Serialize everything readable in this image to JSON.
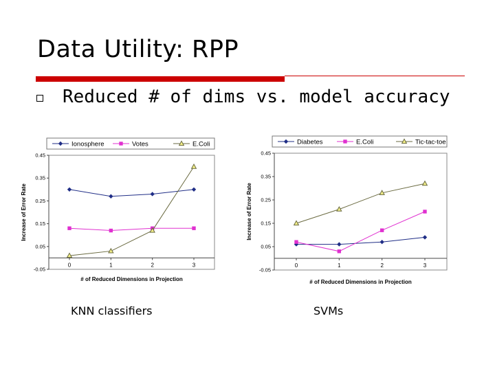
{
  "slide": {
    "title": "Data Utility: RPP",
    "bullet": "Reduced # of dims vs. model accuracy",
    "captions": [
      "KNN classifiers",
      "SVMs"
    ]
  },
  "colors": {
    "accent": "#cc0000",
    "series": [
      "#1f2d86",
      "#e030d0",
      "#6a6a40"
    ],
    "plot_bg": "#ffffff",
    "legend_bg": "#ffffff"
  },
  "chart_data": [
    {
      "type": "line",
      "x": [
        0,
        1,
        2,
        3
      ],
      "xlabel": "# of Reduced Dimensions in Projection",
      "ylabel": "Increase of Error Rate",
      "ylim": [
        -0.05,
        0.45
      ],
      "yticks": [
        -0.05,
        0.05,
        0.15,
        0.25,
        0.35,
        0.45
      ],
      "ytick_labels": [
        "-0.05",
        "0.05",
        "0.15",
        "0.25",
        "0.35",
        "0.45"
      ],
      "xtick_labels": [
        "0",
        "1",
        "2",
        "3"
      ],
      "legend_position": "top",
      "grid": false,
      "series": [
        {
          "name": "Ionosphere",
          "marker": "diamond",
          "values": [
            0.3,
            0.27,
            0.28,
            0.3
          ]
        },
        {
          "name": "Votes",
          "marker": "square",
          "values": [
            0.13,
            0.12,
            0.13,
            0.13
          ]
        },
        {
          "name": "E.Coli",
          "marker": "triangle",
          "values": [
            0.01,
            0.03,
            0.12,
            0.4
          ]
        }
      ]
    },
    {
      "type": "line",
      "x": [
        0,
        1,
        2,
        3
      ],
      "xlabel": "# of Reduced Dimensions in Projection",
      "ylabel": "Increase of Error Rate",
      "ylim": [
        -0.05,
        0.45
      ],
      "yticks": [
        -0.05,
        0.05,
        0.15,
        0.25,
        0.35,
        0.45
      ],
      "ytick_labels": [
        "-0.05",
        "0.05",
        "0.15",
        "0.25",
        "0.35",
        "0.45"
      ],
      "xtick_labels": [
        "0",
        "1",
        "2",
        "3"
      ],
      "legend_position": "top",
      "grid": false,
      "series": [
        {
          "name": "Diabetes",
          "marker": "diamond",
          "values": [
            0.06,
            0.06,
            0.07,
            0.09
          ]
        },
        {
          "name": "E.Coli",
          "marker": "square",
          "values": [
            0.07,
            0.03,
            0.12,
            0.2
          ]
        },
        {
          "name": "Tic-tac-toe",
          "marker": "triangle",
          "values": [
            0.15,
            0.21,
            0.28,
            0.32
          ]
        }
      ]
    }
  ]
}
